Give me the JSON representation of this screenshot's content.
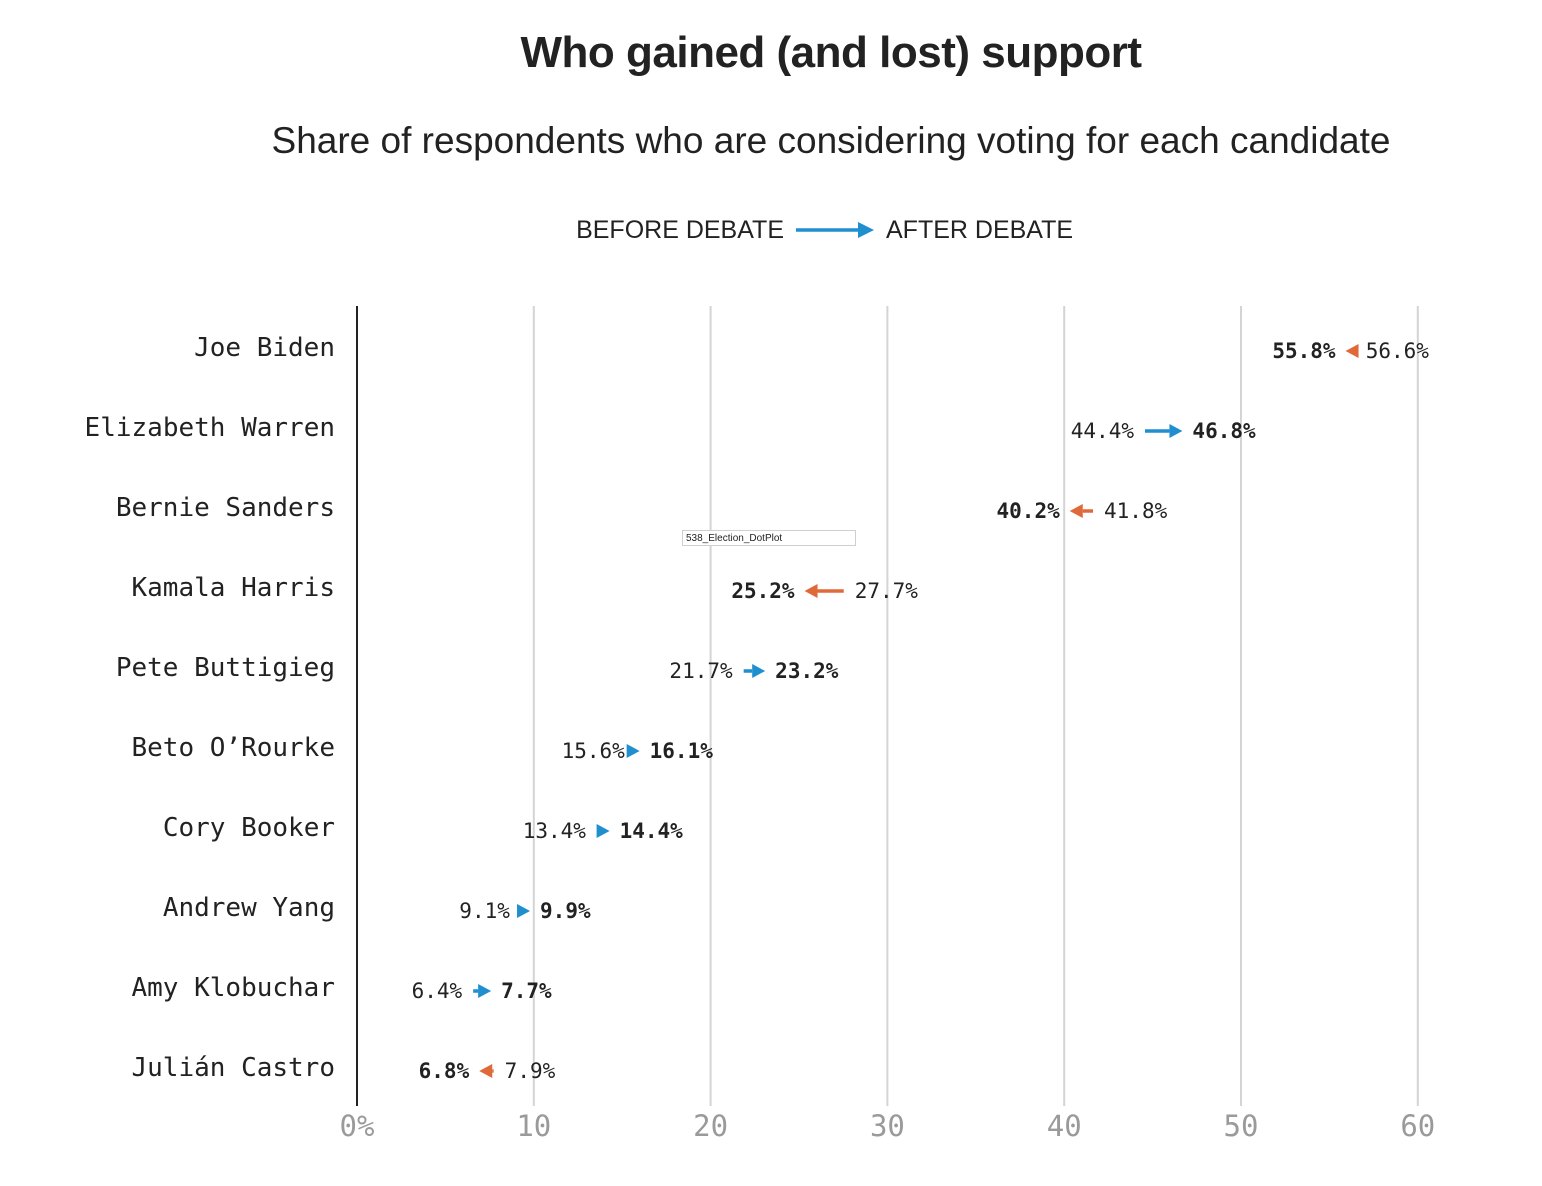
{
  "title": "Who gained (and lost) support",
  "subtitle": "Share of respondents who are considering voting for each candidate",
  "legend": {
    "before_label": "BEFORE DEBATE",
    "after_label": "AFTER DEBATE",
    "arrow_color": "#1f8fd0"
  },
  "overlay_label": "538_Election_DotPlot",
  "colors": {
    "gain": "#1f8fd0",
    "loss": "#e0693a",
    "grid": "#d4d4d4",
    "axis": "#222222",
    "tick_text": "#9a9a9a",
    "text": "#222222"
  },
  "chart_data": {
    "type": "dot-arrow",
    "title": "Who gained (and lost) support",
    "subtitle": "Share of respondents who are considering voting for each candidate",
    "xlabel": "",
    "ylabel": "",
    "xlim": [
      0,
      60
    ],
    "x_ticks": [
      0,
      10,
      20,
      30,
      40,
      50,
      60
    ],
    "x_tick_labels": [
      "0%",
      "10",
      "20",
      "30",
      "40",
      "50",
      "60"
    ],
    "grid": true,
    "legend": [
      "BEFORE DEBATE",
      "AFTER DEBATE"
    ],
    "categories": [
      "Joe Biden",
      "Elizabeth Warren",
      "Bernie Sanders",
      "Kamala Harris",
      "Pete Buttigieg",
      "Beto O’Rourke",
      "Cory Booker",
      "Andrew Yang",
      "Amy Klobuchar",
      "Julián Castro"
    ],
    "series": [
      {
        "name": "BEFORE DEBATE",
        "values": [
          56.6,
          44.4,
          41.8,
          27.7,
          21.7,
          15.6,
          13.4,
          9.1,
          6.4,
          7.9
        ],
        "labels": [
          "56.6%",
          "44.4%",
          "41.8%",
          "27.7%",
          "21.7%",
          "15.6%",
          "13.4%",
          "9.1%",
          "6.4%",
          "7.9%"
        ]
      },
      {
        "name": "AFTER DEBATE",
        "values": [
          55.8,
          46.8,
          40.2,
          25.2,
          23.2,
          16.1,
          14.4,
          9.9,
          7.7,
          6.8
        ],
        "labels": [
          "55.8%",
          "46.8%",
          "40.2%",
          "25.2%",
          "23.2%",
          "16.1%",
          "14.4%",
          "9.9%",
          "7.7%",
          "6.8%"
        ]
      }
    ]
  }
}
